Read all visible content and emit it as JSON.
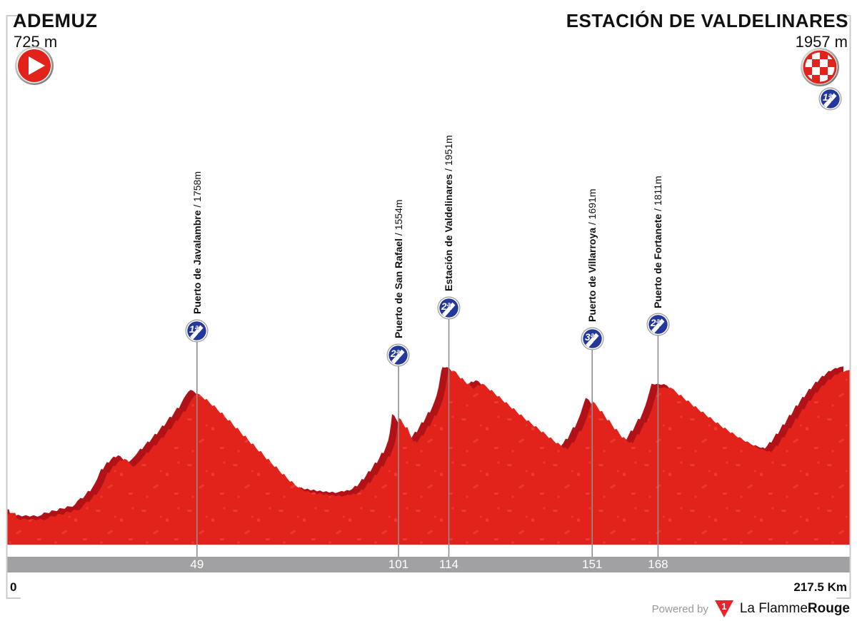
{
  "header": {
    "start_name": "ADEMUZ",
    "start_alt": "725 m",
    "finish_name": "ESTACIÓN DE VALDELINARES",
    "finish_alt": "1957 m",
    "finish_category": "1ª"
  },
  "footer": {
    "km_start": "0",
    "km_total": "217.5 Km",
    "powered_by": "Powered by",
    "brand_number": "1",
    "brand_name_regular": "La Flamme",
    "brand_name_bold": "Rouge"
  },
  "colors": {
    "profile_red": "#E2231B",
    "profile_shadow": "#B11218",
    "texture_red": "#F4564E",
    "axis_bar": "#A1A1A3",
    "tick_line": "#8F8F8F",
    "frame": "#CBCBCB",
    "badge_blue": "#24389B",
    "badge_ring": "#9A9A9A",
    "brand_red": "#E8242B",
    "bar_text": "#FFFFFF"
  },
  "chart_data": {
    "type": "area",
    "title": "Stage elevation profile Ademuz - Estación de Valdelinares",
    "x_unit": "km",
    "y_unit": "m",
    "x_range": [
      0,
      217.5
    ],
    "y_range": [
      480,
      1990
    ],
    "grid": false,
    "start": {
      "name": "ADEMUZ",
      "km": 0,
      "elevation_m": 725
    },
    "finish": {
      "name": "ESTACIÓN DE VALDELINARES",
      "km": 217.5,
      "elevation_m": 1957,
      "category": "1ª"
    },
    "climbs": [
      {
        "name": "Puerto de Javalambre",
        "altitude_label": "1758m",
        "elevation_m": 1758,
        "km": 49,
        "category": "1ª"
      },
      {
        "name": "Puerto de San Rafael",
        "altitude_label": "1554m",
        "elevation_m": 1554,
        "km": 101,
        "category": "2ª"
      },
      {
        "name": "Estación de Valdelinares",
        "altitude_label": "1951m",
        "elevation_m": 1951,
        "km": 114,
        "category": "2ª"
      },
      {
        "name": "Puerto de Villarroya",
        "altitude_label": "1691m",
        "elevation_m": 1691,
        "km": 151,
        "category": "3ª"
      },
      {
        "name": "Puerto de Fortanete",
        "altitude_label": "1811m",
        "elevation_m": 1811,
        "km": 168,
        "category": "2ª"
      }
    ],
    "km_ticks": [
      49,
      101,
      114,
      151,
      168
    ],
    "profile_points": [
      [
        0,
        725
      ],
      [
        0.7,
        748
      ],
      [
        2.1,
        748
      ],
      [
        2.5,
        702
      ],
      [
        3.5,
        690
      ],
      [
        4.5,
        703
      ],
      [
        5.5,
        688
      ],
      [
        6.5,
        700
      ],
      [
        7.5,
        687
      ],
      [
        8.5,
        699
      ],
      [
        9.5,
        686
      ],
      [
        10.5,
        700
      ],
      [
        11.2,
        722
      ],
      [
        12.5,
        716
      ],
      [
        13.2,
        740
      ],
      [
        14.5,
        733
      ],
      [
        15.2,
        758
      ],
      [
        16.5,
        752
      ],
      [
        17.2,
        775
      ],
      [
        18.5,
        770
      ],
      [
        19.2,
        790
      ],
      [
        19.8,
        820
      ],
      [
        20.6,
        845
      ],
      [
        21.2,
        840
      ],
      [
        21.9,
        872
      ],
      [
        22.5,
        905
      ],
      [
        23.1,
        900
      ],
      [
        23.7,
        935
      ],
      [
        24.3,
        968
      ],
      [
        24.9,
        1005
      ],
      [
        25.4,
        1048
      ],
      [
        25.9,
        1090
      ],
      [
        26.4,
        1085
      ],
      [
        26.9,
        1118
      ],
      [
        27.4,
        1148
      ],
      [
        27.9,
        1143
      ],
      [
        28.5,
        1172
      ],
      [
        29.1,
        1195
      ],
      [
        29.7,
        1188
      ],
      [
        30.3,
        1205
      ],
      [
        30.9,
        1198
      ],
      [
        31.6,
        1170
      ],
      [
        32.4,
        1140
      ],
      [
        33.2,
        1152
      ],
      [
        34,
        1178
      ],
      [
        34.8,
        1205
      ],
      [
        35.4,
        1232
      ],
      [
        36,
        1262
      ],
      [
        36.5,
        1256
      ],
      [
        37.2,
        1290
      ],
      [
        37.9,
        1322
      ],
      [
        38.4,
        1317
      ],
      [
        39.1,
        1352
      ],
      [
        39.8,
        1388
      ],
      [
        40.3,
        1382
      ],
      [
        41,
        1420
      ],
      [
        41.7,
        1458
      ],
      [
        42.2,
        1452
      ],
      [
        42.9,
        1492
      ],
      [
        43.6,
        1532
      ],
      [
        44.1,
        1527
      ],
      [
        44.8,
        1568
      ],
      [
        45.5,
        1608
      ],
      [
        46,
        1603
      ],
      [
        46.6,
        1645
      ],
      [
        47.2,
        1685
      ],
      [
        47.8,
        1715
      ],
      [
        48.4,
        1742
      ],
      [
        49,
        1758
      ],
      [
        49.6,
        1752
      ],
      [
        50.3,
        1730
      ],
      [
        51,
        1706
      ],
      [
        51.5,
        1712
      ],
      [
        52.2,
        1682
      ],
      [
        53,
        1652
      ],
      [
        53.5,
        1658
      ],
      [
        54.2,
        1625
      ],
      [
        55,
        1592
      ],
      [
        55.5,
        1598
      ],
      [
        56.2,
        1562
      ],
      [
        57,
        1528
      ],
      [
        57.5,
        1534
      ],
      [
        58.2,
        1498
      ],
      [
        59,
        1462
      ],
      [
        59.5,
        1468
      ],
      [
        60.2,
        1432
      ],
      [
        61,
        1396
      ],
      [
        61.5,
        1402
      ],
      [
        62.2,
        1366
      ],
      [
        63,
        1330
      ],
      [
        63.5,
        1336
      ],
      [
        64.2,
        1300
      ],
      [
        65,
        1266
      ],
      [
        65.5,
        1272
      ],
      [
        66.2,
        1236
      ],
      [
        67,
        1200
      ],
      [
        67.5,
        1206
      ],
      [
        68.2,
        1170
      ],
      [
        69,
        1136
      ],
      [
        69.5,
        1142
      ],
      [
        70.2,
        1106
      ],
      [
        71,
        1072
      ],
      [
        71.5,
        1078
      ],
      [
        72.2,
        1044
      ],
      [
        73,
        1012
      ],
      [
        73.5,
        1018
      ],
      [
        74.2,
        988
      ],
      [
        75,
        962
      ],
      [
        75.5,
        968
      ],
      [
        76.2,
        945
      ],
      [
        77,
        928
      ],
      [
        77.6,
        934
      ],
      [
        78.4,
        916
      ],
      [
        79.2,
        924
      ],
      [
        80,
        908
      ],
      [
        80.8,
        916
      ],
      [
        81.6,
        900
      ],
      [
        82.4,
        908
      ],
      [
        83.2,
        894
      ],
      [
        84,
        902
      ],
      [
        84.8,
        890
      ],
      [
        85.6,
        898
      ],
      [
        86.4,
        886
      ],
      [
        87.2,
        894
      ],
      [
        88,
        904
      ],
      [
        88.6,
        898
      ],
      [
        89.4,
        912
      ],
      [
        90,
        906
      ],
      [
        90.8,
        922
      ],
      [
        91.4,
        948
      ],
      [
        92,
        942
      ],
      [
        92.6,
        972
      ],
      [
        93.2,
        1005
      ],
      [
        93.7,
        1000
      ],
      [
        94.3,
        1035
      ],
      [
        94.9,
        1072
      ],
      [
        95.4,
        1067
      ],
      [
        96,
        1105
      ],
      [
        96.6,
        1145
      ],
      [
        97.1,
        1140
      ],
      [
        97.7,
        1182
      ],
      [
        98.3,
        1228
      ],
      [
        98.8,
        1223
      ],
      [
        99.4,
        1275
      ],
      [
        100,
        1330
      ],
      [
        100.4,
        1395
      ],
      [
        100.7,
        1462
      ],
      [
        101,
        1554
      ],
      [
        101.6,
        1540
      ],
      [
        102.2,
        1502
      ],
      [
        102.8,
        1468
      ],
      [
        103.3,
        1474
      ],
      [
        103.8,
        1428
      ],
      [
        104.4,
        1380
      ],
      [
        104.9,
        1352
      ],
      [
        105.4,
        1358
      ],
      [
        105.8,
        1342
      ],
      [
        106.3,
        1368
      ],
      [
        106.9,
        1405
      ],
      [
        107.4,
        1400
      ],
      [
        108,
        1442
      ],
      [
        108.6,
        1486
      ],
      [
        109.1,
        1481
      ],
      [
        109.7,
        1526
      ],
      [
        110.3,
        1572
      ],
      [
        110.8,
        1567
      ],
      [
        111.4,
        1615
      ],
      [
        112,
        1665
      ],
      [
        112.5,
        1712
      ],
      [
        113,
        1782
      ],
      [
        113.4,
        1858
      ],
      [
        113.7,
        1920
      ],
      [
        114,
        1951
      ],
      [
        114.6,
        1947
      ],
      [
        115.2,
        1951
      ],
      [
        115.8,
        1942
      ],
      [
        116.4,
        1912
      ],
      [
        117,
        1884
      ],
      [
        117.5,
        1890
      ],
      [
        118.1,
        1862
      ],
      [
        118.7,
        1838
      ],
      [
        119.2,
        1844
      ],
      [
        119.8,
        1818
      ],
      [
        120.4,
        1796
      ],
      [
        120.9,
        1812
      ],
      [
        121.4,
        1830
      ],
      [
        122,
        1824
      ],
      [
        122.6,
        1840
      ],
      [
        123.2,
        1834
      ],
      [
        123.9,
        1808
      ],
      [
        124.6,
        1782
      ],
      [
        125.1,
        1788
      ],
      [
        125.8,
        1760
      ],
      [
        126.5,
        1732
      ],
      [
        127,
        1738
      ],
      [
        127.7,
        1708
      ],
      [
        128.4,
        1680
      ],
      [
        128.9,
        1686
      ],
      [
        129.6,
        1656
      ],
      [
        130.3,
        1628
      ],
      [
        130.8,
        1634
      ],
      [
        131.5,
        1604
      ],
      [
        132.2,
        1576
      ],
      [
        132.7,
        1582
      ],
      [
        133.4,
        1552
      ],
      [
        134.1,
        1526
      ],
      [
        134.6,
        1532
      ],
      [
        135.3,
        1504
      ],
      [
        136,
        1478
      ],
      [
        136.5,
        1484
      ],
      [
        137.2,
        1456
      ],
      [
        137.9,
        1430
      ],
      [
        138.4,
        1436
      ],
      [
        139.1,
        1408
      ],
      [
        139.8,
        1382
      ],
      [
        140.3,
        1388
      ],
      [
        141,
        1360
      ],
      [
        141.7,
        1336
      ],
      [
        142.2,
        1342
      ],
      [
        142.9,
        1318
      ],
      [
        143.6,
        1296
      ],
      [
        144.1,
        1302
      ],
      [
        144.6,
        1284
      ],
      [
        145.2,
        1308
      ],
      [
        145.8,
        1346
      ],
      [
        146.3,
        1341
      ],
      [
        147,
        1392
      ],
      [
        147.7,
        1444
      ],
      [
        148.2,
        1439
      ],
      [
        148.9,
        1496
      ],
      [
        149.6,
        1552
      ],
      [
        150.1,
        1604
      ],
      [
        150.6,
        1655
      ],
      [
        151,
        1691
      ],
      [
        151.7,
        1678
      ],
      [
        152.4,
        1640
      ],
      [
        153,
        1606
      ],
      [
        153.5,
        1612
      ],
      [
        154.2,
        1570
      ],
      [
        154.9,
        1530
      ],
      [
        155.4,
        1536
      ],
      [
        156.1,
        1494
      ],
      [
        156.8,
        1454
      ],
      [
        157.3,
        1460
      ],
      [
        158,
        1420
      ],
      [
        158.7,
        1384
      ],
      [
        159.2,
        1390
      ],
      [
        159.9,
        1358
      ],
      [
        160.6,
        1342
      ],
      [
        161.1,
        1348
      ],
      [
        161.5,
        1338
      ],
      [
        162,
        1372
      ],
      [
        162.6,
        1415
      ],
      [
        163.1,
        1410
      ],
      [
        163.8,
        1462
      ],
      [
        164.5,
        1515
      ],
      [
        165,
        1510
      ],
      [
        165.7,
        1568
      ],
      [
        166.4,
        1628
      ],
      [
        166.9,
        1682
      ],
      [
        167.4,
        1740
      ],
      [
        167.8,
        1790
      ],
      [
        168,
        1811
      ],
      [
        168.8,
        1804
      ],
      [
        169.6,
        1812
      ],
      [
        170.4,
        1800
      ],
      [
        171.2,
        1808
      ],
      [
        172,
        1795
      ],
      [
        172.7,
        1768
      ],
      [
        173.4,
        1742
      ],
      [
        173.9,
        1748
      ],
      [
        174.6,
        1720
      ],
      [
        175.3,
        1694
      ],
      [
        175.8,
        1700
      ],
      [
        176.5,
        1672
      ],
      [
        177.2,
        1646
      ],
      [
        177.7,
        1652
      ],
      [
        178.4,
        1624
      ],
      [
        179.1,
        1600
      ],
      [
        179.6,
        1606
      ],
      [
        180.3,
        1578
      ],
      [
        181,
        1554
      ],
      [
        181.5,
        1560
      ],
      [
        182.2,
        1532
      ],
      [
        182.9,
        1508
      ],
      [
        183.4,
        1514
      ],
      [
        184.1,
        1488
      ],
      [
        184.8,
        1464
      ],
      [
        185.3,
        1470
      ],
      [
        186,
        1446
      ],
      [
        186.7,
        1424
      ],
      [
        187.2,
        1430
      ],
      [
        187.9,
        1406
      ],
      [
        188.6,
        1384
      ],
      [
        189.1,
        1390
      ],
      [
        189.8,
        1368
      ],
      [
        190.5,
        1348
      ],
      [
        191,
        1354
      ],
      [
        191.7,
        1332
      ],
      [
        192.4,
        1314
      ],
      [
        192.9,
        1320
      ],
      [
        193.6,
        1300
      ],
      [
        194.3,
        1286
      ],
      [
        194.8,
        1292
      ],
      [
        195.5,
        1278
      ],
      [
        196.2,
        1268
      ],
      [
        196.7,
        1274
      ],
      [
        197.2,
        1262
      ],
      [
        197.8,
        1284
      ],
      [
        198.4,
        1318
      ],
      [
        198.9,
        1313
      ],
      [
        199.5,
        1350
      ],
      [
        200.1,
        1390
      ],
      [
        200.6,
        1385
      ],
      [
        201.2,
        1425
      ],
      [
        201.8,
        1468
      ],
      [
        202.3,
        1463
      ],
      [
        202.9,
        1505
      ],
      [
        203.5,
        1548
      ],
      [
        204,
        1543
      ],
      [
        204.6,
        1585
      ],
      [
        205.2,
        1628
      ],
      [
        205.7,
        1623
      ],
      [
        206.3,
        1662
      ],
      [
        206.9,
        1700
      ],
      [
        207.4,
        1695
      ],
      [
        208,
        1732
      ],
      [
        208.6,
        1768
      ],
      [
        209.1,
        1763
      ],
      [
        209.7,
        1796
      ],
      [
        210.3,
        1828
      ],
      [
        210.8,
        1823
      ],
      [
        211.4,
        1852
      ],
      [
        212,
        1878
      ],
      [
        212.5,
        1873
      ],
      [
        213.1,
        1898
      ],
      [
        213.7,
        1920
      ],
      [
        214.2,
        1915
      ],
      [
        214.8,
        1932
      ],
      [
        215.4,
        1944
      ],
      [
        215.9,
        1940
      ],
      [
        216.4,
        1950
      ],
      [
        217,
        1954
      ],
      [
        217.5,
        1957
      ]
    ]
  }
}
